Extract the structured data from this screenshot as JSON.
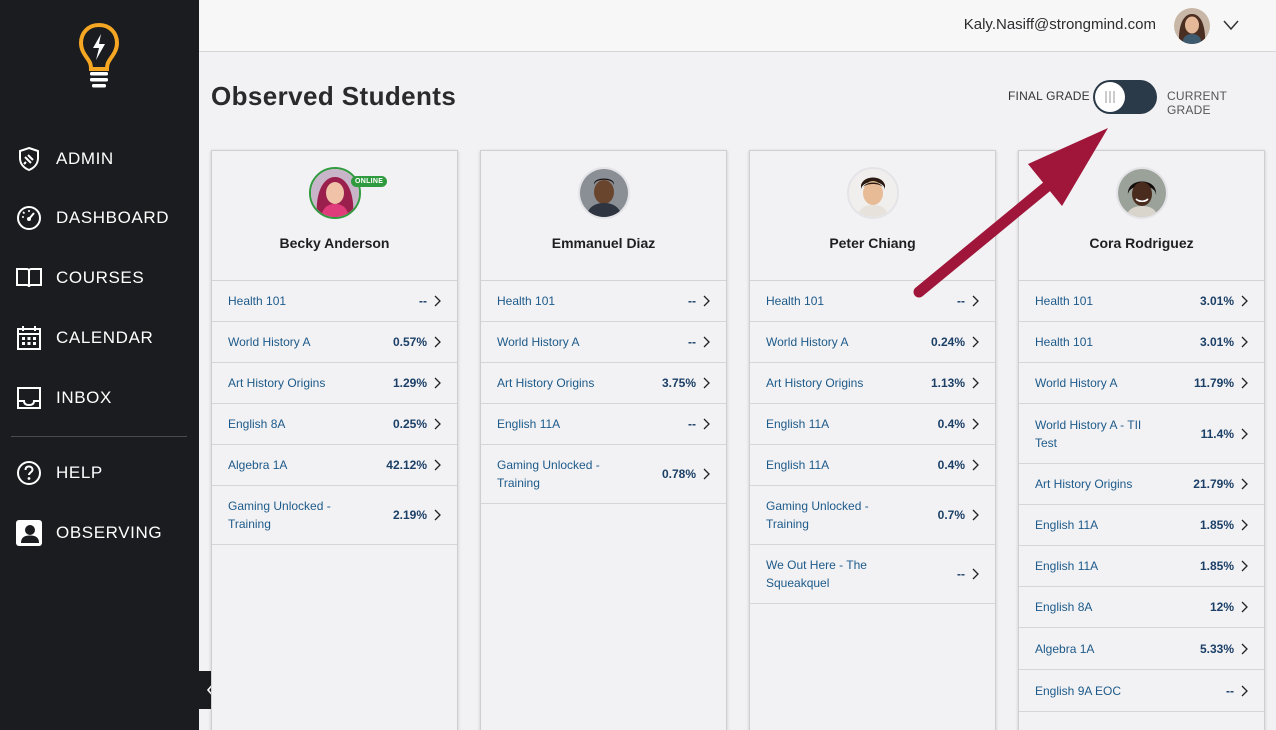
{
  "sidebar": {
    "items": [
      {
        "label": "ADMIN",
        "icon": "shield-icon"
      },
      {
        "label": "DASHBOARD",
        "icon": "gauge-icon"
      },
      {
        "label": "COURSES",
        "icon": "book-icon"
      },
      {
        "label": "CALENDAR",
        "icon": "calendar-icon"
      },
      {
        "label": "INBOX",
        "icon": "inbox-icon"
      },
      {
        "label": "HELP",
        "icon": "help-icon"
      },
      {
        "label": "OBSERVING",
        "icon": "observing-icon"
      }
    ]
  },
  "header": {
    "user_email": "Kaly.Nasiff@strongmind.com"
  },
  "page": {
    "title": "Observed Students"
  },
  "grade_toggle": {
    "left_label": "FINAL GRADE",
    "right_label": "CURRENT GRADE"
  },
  "students": [
    {
      "name": "Becky Anderson",
      "online": true,
      "online_label": "ONLINE",
      "courses": [
        {
          "name": "Health 101",
          "grade": "--"
        },
        {
          "name": "World History A",
          "grade": "0.57%"
        },
        {
          "name": "Art History Origins",
          "grade": "1.29%"
        },
        {
          "name": "English 8A",
          "grade": "0.25%"
        },
        {
          "name": "Algebra 1A",
          "grade": "42.12%"
        },
        {
          "name": "Gaming Unlocked - Training",
          "grade": "2.19%"
        }
      ]
    },
    {
      "name": "Emmanuel Diaz",
      "online": false,
      "courses": [
        {
          "name": "Health 101",
          "grade": "--"
        },
        {
          "name": "World History A",
          "grade": "--"
        },
        {
          "name": "Art History Origins",
          "grade": "3.75%"
        },
        {
          "name": "English 11A",
          "grade": "--"
        },
        {
          "name": "Gaming Unlocked - Training",
          "grade": "0.78%"
        }
      ]
    },
    {
      "name": "Peter Chiang",
      "online": false,
      "courses": [
        {
          "name": "Health 101",
          "grade": "--"
        },
        {
          "name": "World History A",
          "grade": "0.24%"
        },
        {
          "name": "Art History Origins",
          "grade": "1.13%"
        },
        {
          "name": "English 11A",
          "grade": "0.4%"
        },
        {
          "name": "English 11A",
          "grade": "0.4%"
        },
        {
          "name": "Gaming Unlocked - Training",
          "grade": "0.7%"
        },
        {
          "name": "We Out Here - The Squeakquel",
          "grade": "--"
        }
      ]
    },
    {
      "name": "Cora Rodriguez",
      "online": false,
      "courses": [
        {
          "name": "Health 101",
          "grade": "3.01%"
        },
        {
          "name": "Health 101",
          "grade": "3.01%"
        },
        {
          "name": "World History A",
          "grade": "11.79%"
        },
        {
          "name": "World History A - TII Test",
          "grade": "11.4%"
        },
        {
          "name": "Art History Origins",
          "grade": "21.79%"
        },
        {
          "name": "English 11A",
          "grade": "1.85%"
        },
        {
          "name": "English 11A",
          "grade": "1.85%"
        },
        {
          "name": "English 8A",
          "grade": "12%"
        },
        {
          "name": "Algebra 1A",
          "grade": "5.33%"
        },
        {
          "name": "English 9A EOC",
          "grade": "--"
        }
      ]
    }
  ],
  "colors": {
    "sidebar_bg": "#1b1c1f",
    "logo_orange": "#f5a623",
    "link_blue": "#1d5a8a",
    "online_green": "#2f9a3e",
    "annotation_arrow": "#a0163a"
  }
}
